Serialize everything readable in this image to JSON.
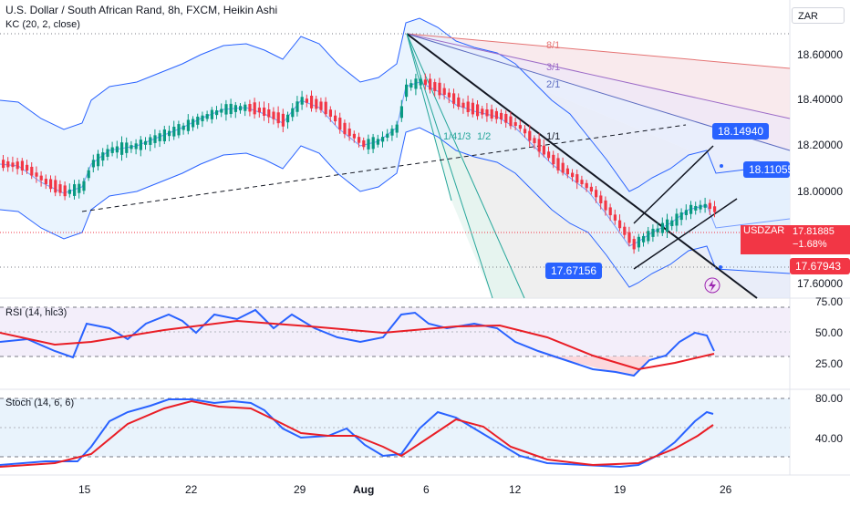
{
  "header": {
    "title": "U.S. Dollar / South African Rand, 8h, FXCM, Heikin Ashi",
    "indicator": "KC (20, 2, close)",
    "currency": "ZAR"
  },
  "price_axis": {
    "ticks": [
      "18.60000",
      "18.40000",
      "18.20000",
      "18.00000",
      "17.60000"
    ]
  },
  "time_axis": {
    "ticks": [
      "15",
      "22",
      "29",
      "Aug",
      "6",
      "12",
      "19",
      "26"
    ]
  },
  "labels": {
    "current_symbol": "USDZAR",
    "current_price": "17.81885",
    "current_change": "−1.68%",
    "low_price": "17.67943",
    "tag_upper": "18.14940",
    "tag_mid": "18.11055",
    "tag_left": "17.67156"
  },
  "fan_labels": {
    "f8_1": "8/1",
    "f3_1": "3/1",
    "f2_1": "2/1",
    "f1_1": "1/1",
    "f1_4": "1/4",
    "f1_3": "1/3",
    "f1_2": "1/2"
  },
  "rsi": {
    "title": "RSI (14, hlc3)",
    "ticks": [
      "75.00",
      "50.00",
      "25.00"
    ]
  },
  "stoch": {
    "title": "Stoch (14, 6, 6)",
    "ticks": [
      "80.00",
      "40.00"
    ]
  },
  "colors": {
    "up": "#089981",
    "down": "#f23645",
    "band": "#2962ff",
    "rsi_line": "#2962ff",
    "signal": "#e91e26"
  }
}
